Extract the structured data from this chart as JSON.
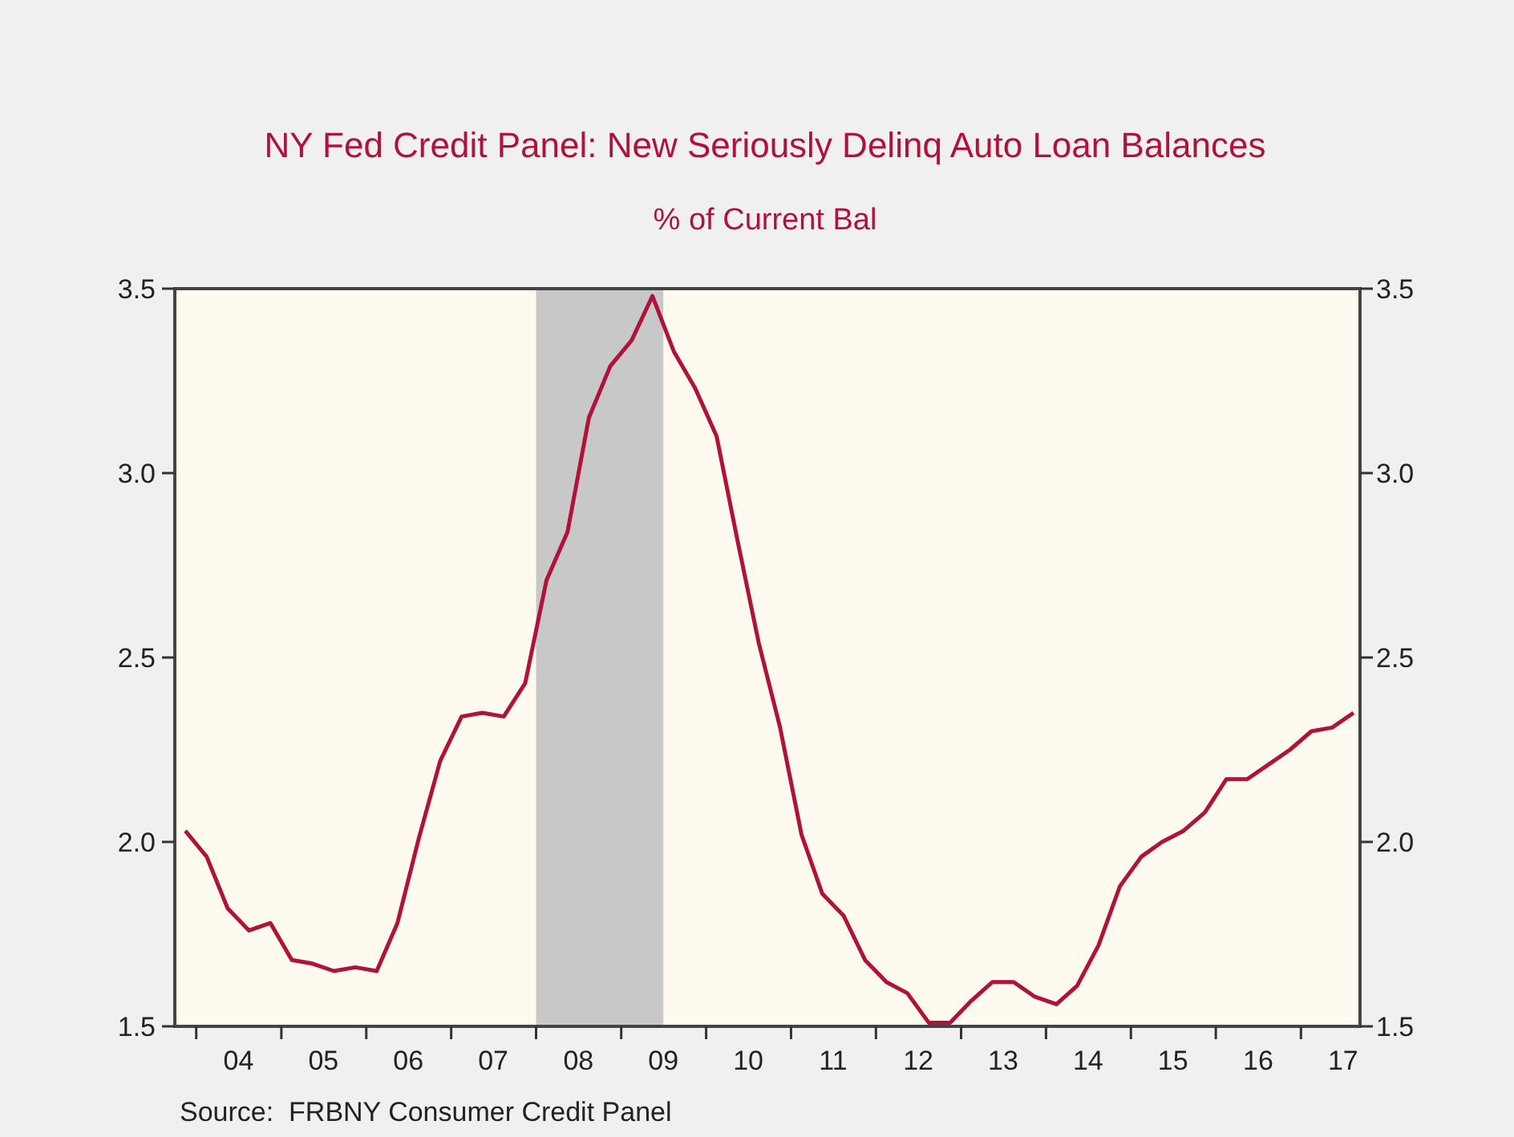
{
  "chart_data": {
    "type": "line",
    "title": "NY Fed Credit Panel: New Seriously Delinq Auto Loan Balances",
    "subtitle": "% of Current Bal",
    "annotations": [
      "Source:  FRBNY Consumer Credit Panel"
    ],
    "x": [
      "2003-11-15",
      "2004-02-15",
      "2004-05-15",
      "2004-08-15",
      "2004-11-15",
      "2005-02-15",
      "2005-05-15",
      "2005-08-15",
      "2005-11-15",
      "2006-02-15",
      "2006-05-15",
      "2006-08-15",
      "2006-11-15",
      "2007-02-15",
      "2007-05-15",
      "2007-08-15",
      "2007-11-15",
      "2008-02-15",
      "2008-05-15",
      "2008-08-15",
      "2008-11-15",
      "2009-02-15",
      "2009-05-15",
      "2009-08-15",
      "2009-11-15",
      "2010-02-15",
      "2010-05-15",
      "2010-08-15",
      "2010-11-15",
      "2011-02-15",
      "2011-05-15",
      "2011-08-15",
      "2011-11-15",
      "2012-02-15",
      "2012-05-15",
      "2012-08-15",
      "2012-11-15",
      "2013-02-15",
      "2013-05-15",
      "2013-08-15",
      "2013-11-15",
      "2014-02-15",
      "2014-05-15",
      "2014-08-15",
      "2014-11-15",
      "2015-02-15",
      "2015-05-15",
      "2015-08-15",
      "2015-11-15",
      "2016-02-15",
      "2016-05-15",
      "2016-08-15",
      "2016-11-15",
      "2017-02-15",
      "2017-05-15",
      "2017-08-15"
    ],
    "series": [
      {
        "color": "#b0123a",
        "values": [
          2.03,
          1.96,
          1.82,
          1.76,
          1.78,
          1.68,
          1.67,
          1.65,
          1.66,
          1.65,
          1.78,
          2.01,
          2.22,
          2.34,
          2.35,
          2.34,
          2.43,
          2.71,
          2.84,
          3.15,
          3.29,
          3.36,
          3.48,
          3.33,
          3.23,
          3.1,
          2.82,
          2.54,
          2.31,
          2.02,
          1.86,
          1.8,
          1.68,
          1.62,
          1.59,
          1.51,
          1.51,
          1.57,
          1.62,
          1.62,
          1.58,
          1.56,
          1.61,
          1.72,
          1.88,
          1.96,
          2.0,
          2.03,
          2.08,
          2.17,
          2.17,
          2.21,
          2.25,
          2.3,
          2.31,
          2.35
        ]
      }
    ],
    "xlim": [
      "2003-10-01",
      "2017-09-12"
    ],
    "xticks": [
      {
        "value": "2004-01-01",
        "label": null
      },
      {
        "value": "2004-07-01",
        "label": "04"
      },
      {
        "value": "2005-01-01",
        "label": null
      },
      {
        "value": "2005-07-01",
        "label": "05"
      },
      {
        "value": "2006-01-01",
        "label": null
      },
      {
        "value": "2006-07-01",
        "label": "06"
      },
      {
        "value": "2007-01-01",
        "label": null
      },
      {
        "value": "2007-07-01",
        "label": "07"
      },
      {
        "value": "2008-01-01",
        "label": null
      },
      {
        "value": "2008-07-01",
        "label": "08"
      },
      {
        "value": "2009-01-01",
        "label": null
      },
      {
        "value": "2009-07-01",
        "label": "09"
      },
      {
        "value": "2010-01-01",
        "label": null
      },
      {
        "value": "2010-07-01",
        "label": "10"
      },
      {
        "value": "2011-01-01",
        "label": null
      },
      {
        "value": "2011-07-01",
        "label": "11"
      },
      {
        "value": "2012-01-01",
        "label": null
      },
      {
        "value": "2012-07-01",
        "label": "12"
      },
      {
        "value": "2013-01-01",
        "label": null
      },
      {
        "value": "2013-07-01",
        "label": "13"
      },
      {
        "value": "2014-01-01",
        "label": null
      },
      {
        "value": "2014-07-01",
        "label": "14"
      },
      {
        "value": "2015-01-01",
        "label": null
      },
      {
        "value": "2015-07-01",
        "label": "15"
      },
      {
        "value": "2016-01-01",
        "label": null
      },
      {
        "value": "2016-07-01",
        "label": "16"
      },
      {
        "value": "2017-01-01",
        "label": null
      },
      {
        "value": "2017-07-01",
        "label": "17"
      }
    ],
    "ylim": [
      1.5,
      3.5
    ],
    "yticks": [
      1.5,
      2.5,
      3.5,
      {
        "value": 2,
        "label": "2.0"
      },
      {
        "value": 3,
        "label": "3.0"
      }
    ],
    "y2lim": [
      1.5,
      3.5
    ],
    "y2ticks": [
      1.5,
      2.5,
      3.5,
      {
        "value": 2,
        "label": "2.0"
      },
      {
        "value": 3,
        "label": "3.0"
      }
    ],
    "bands": [
      {
        "axis": "x",
        "from": "2008-01-01",
        "to": "2009-07-01",
        "color": "#c8c8c8"
      }
    ],
    "grid": false,
    "line_style": "solid",
    "marker": "none"
  }
}
